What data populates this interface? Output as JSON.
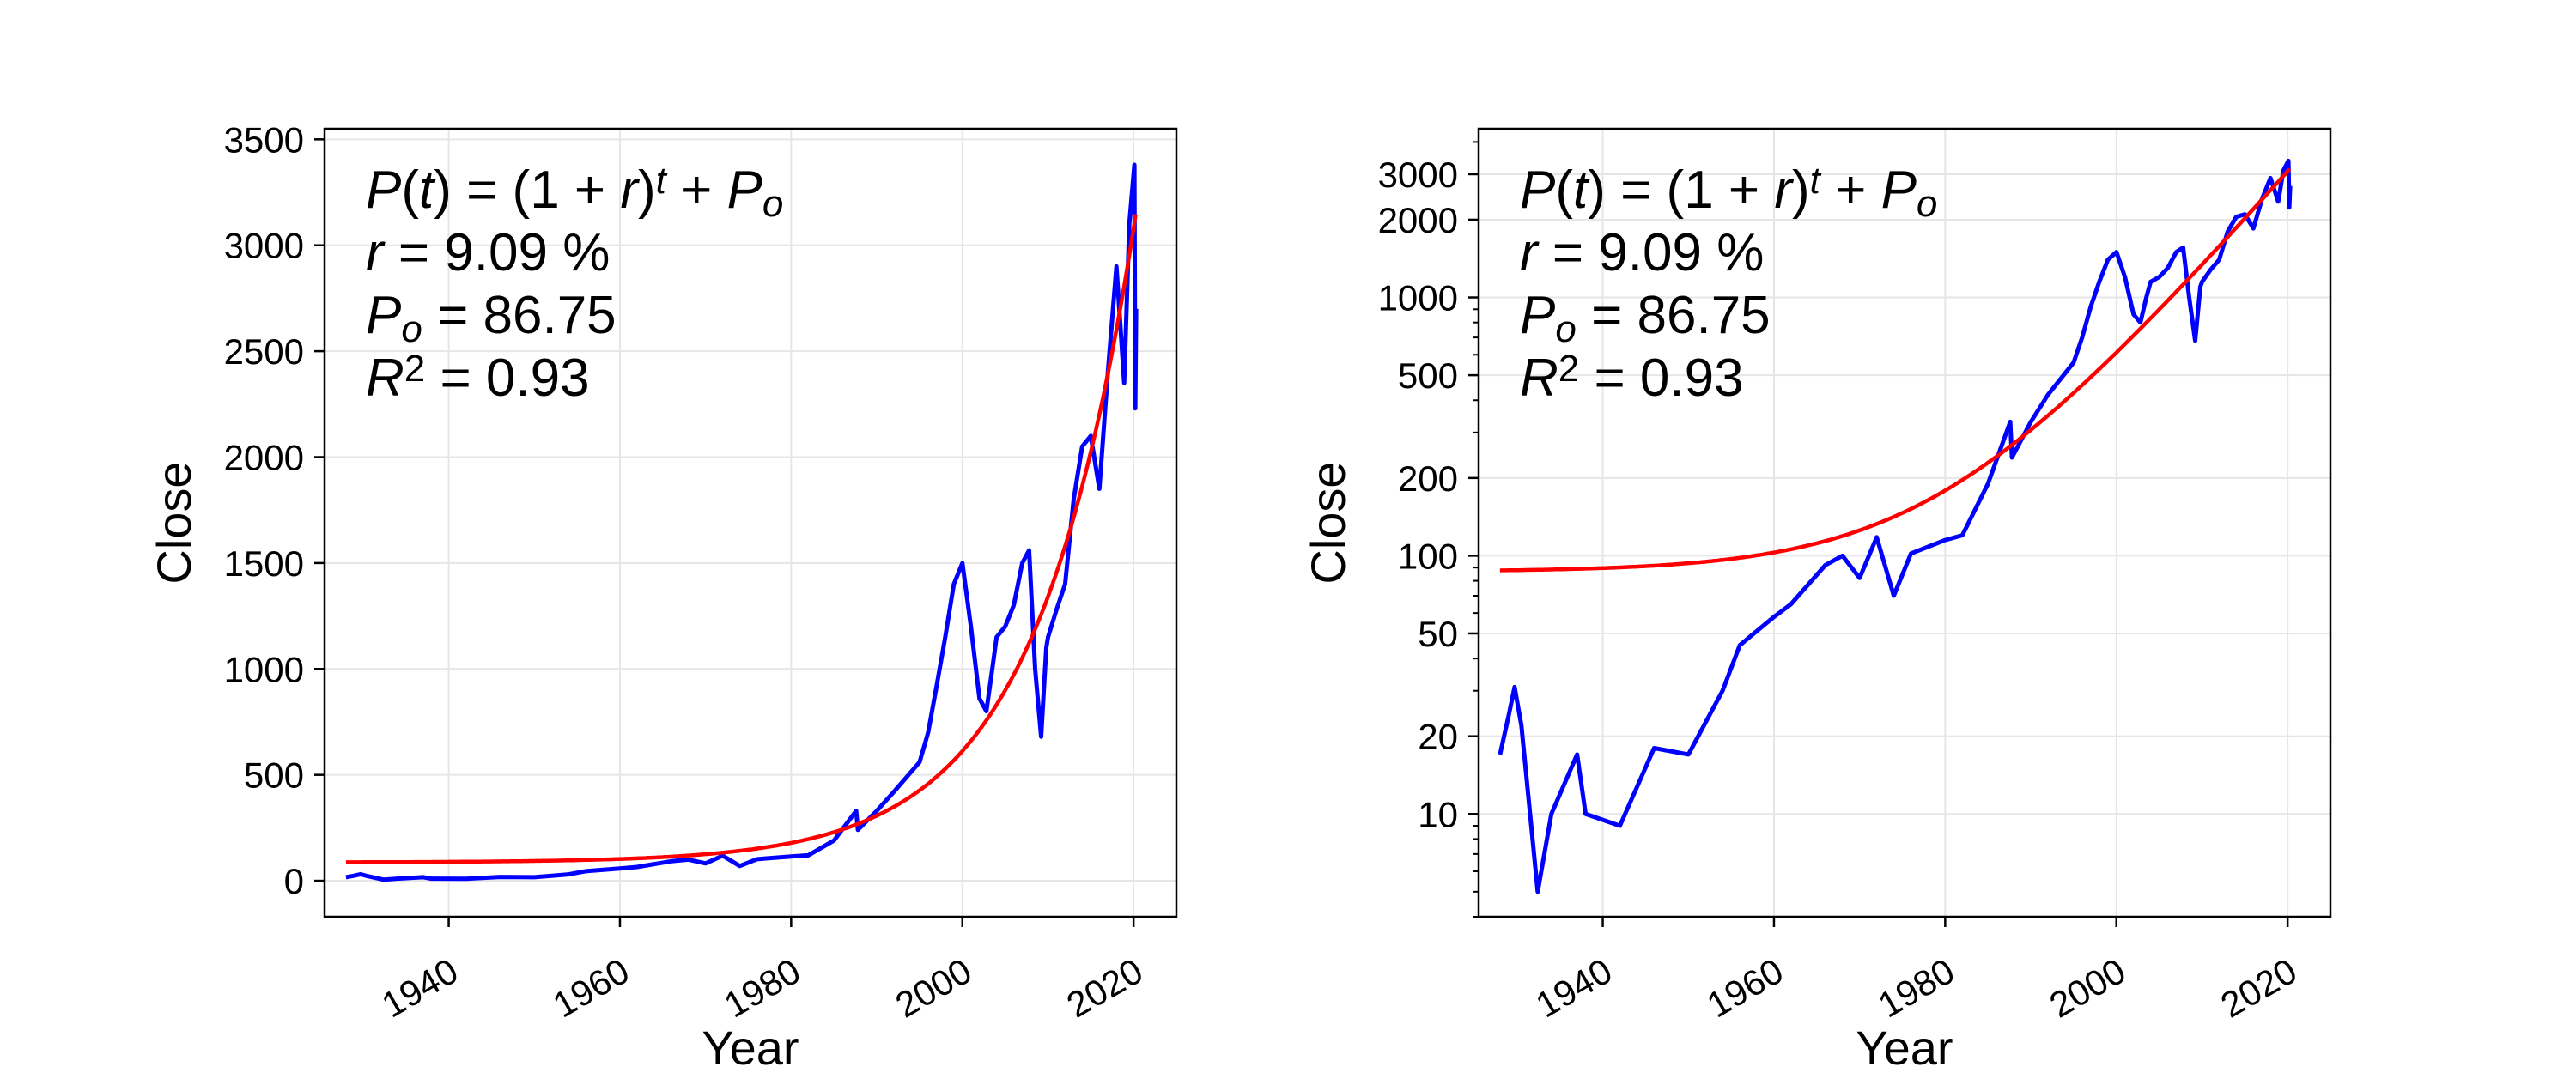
{
  "colors": {
    "price": "#0000ff",
    "fit": "#ff0000",
    "grid": "#e6e6e6",
    "axes": "#000000"
  },
  "chart_data": [
    {
      "type": "line",
      "scale": "linear",
      "xlabel": "Year",
      "ylabel": "Close",
      "xlim": [
        1925.5,
        2025
      ],
      "ylim": [
        -170,
        3550
      ],
      "xticks": [
        1940,
        1960,
        1980,
        2000,
        2020
      ],
      "yticks": [
        0,
        500,
        1000,
        1500,
        2000,
        2500,
        3000,
        3500
      ],
      "xtick_labels": [
        "1940",
        "1960",
        "1980",
        "2000",
        "2020"
      ],
      "ytick_labels": [
        "0",
        "500",
        "1000",
        "1500",
        "2000",
        "2500",
        "3000",
        "3500"
      ],
      "grid": true,
      "annotation": {
        "formula": "P(t) = (1 + r)^t + P_o",
        "r_line": "r = 9.09 %",
        "p_line": "P_o = 86.75",
        "r2_line": "R^2 =  0.93"
      },
      "series": [
        {
          "color": "price",
          "x": [
            1928,
            1929,
            1929.7,
            1930.5,
            1932.4,
            1934,
            1937,
            1938,
            1942,
            1946,
            1950,
            1954,
            1956,
            1960,
            1962,
            1966,
            1968,
            1970,
            1972,
            1974,
            1976,
            1980,
            1982,
            1985,
            1987.6,
            1987.8,
            1990,
            1992,
            1995,
            1996,
            1997,
            1998,
            1999,
            2000,
            2001,
            2002,
            2002.8,
            2003.5,
            2004,
            2005,
            2006,
            2007,
            2007.8,
            2008.5,
            2009.2,
            2009.8,
            2010,
            2011,
            2012,
            2013,
            2014,
            2015,
            2016,
            2017,
            2018,
            2018.9,
            2019.5,
            2020.1,
            2020.2,
            2020.3
          ],
          "y": [
            17,
            24,
            31,
            22,
            5,
            10,
            17,
            10,
            9,
            18,
            17,
            30,
            45,
            58,
            65,
            92,
            100,
            82,
            118,
            70,
            102,
            115,
            120,
            190,
            330,
            240,
            330,
            420,
            560,
            700,
            920,
            1150,
            1400,
            1500,
            1200,
            860,
            800,
            1000,
            1150,
            1200,
            1300,
            1500,
            1560,
            1000,
            680,
            1100,
            1150,
            1280,
            1400,
            1800,
            2050,
            2100,
            1850,
            2400,
            2900,
            2350,
            3100,
            3380,
            2230,
            2700
          ]
        },
        {
          "color": "fit",
          "fit": {
            "r": 0.0909,
            "p0": 86.75,
            "t0": 1928,
            "t_end": 2020.3
          }
        }
      ]
    },
    {
      "type": "line",
      "scale": "log",
      "xlabel": "Year",
      "ylabel": "Close",
      "xlim": [
        1925.5,
        2025
      ],
      "ylim": [
        4,
        4500
      ],
      "xticks": [
        1940,
        1960,
        1980,
        2000,
        2020
      ],
      "yticks": [
        10,
        20,
        50,
        100,
        200,
        500,
        1000,
        2000,
        3000
      ],
      "xtick_labels": [
        "1940",
        "1960",
        "1980",
        "2000",
        "2020"
      ],
      "ytick_labels": [
        "10",
        "20",
        "50",
        "100",
        "200",
        "500",
        "1000",
        "2000",
        "3000"
      ],
      "grid": true,
      "annotation": {
        "formula": "P(t) = (1 + r)^t + P_o",
        "r_line": "r = 9.09 %",
        "p_line": "P_o = 86.75",
        "r2_line": "R^2 =  0.93"
      },
      "series": [
        {
          "color": "price",
          "x": [
            1928,
            1929,
            1929.7,
            1930.5,
            1932.4,
            1934,
            1937,
            1938,
            1942,
            1946,
            1950,
            1954,
            1956,
            1960,
            1962,
            1966,
            1968,
            1970,
            1972,
            1974,
            1976,
            1980,
            1982,
            1985,
            1987.6,
            1987.8,
            1990,
            1992,
            1995,
            1996,
            1997,
            1998,
            1999,
            2000,
            2001,
            2002,
            2002.8,
            2003.5,
            2004,
            2005,
            2006,
            2007,
            2007.8,
            2008.5,
            2009.2,
            2009.8,
            2010,
            2011,
            2012,
            2013,
            2014,
            2015,
            2016,
            2017,
            2018,
            2018.9,
            2019.5,
            2020.1,
            2020.2,
            2020.3
          ],
          "y": [
            17,
            24,
            31,
            22,
            5,
            10,
            17,
            10,
            9,
            18,
            17,
            30,
            45,
            58,
            65,
            92,
            100,
            82,
            118,
            70,
            102,
            115,
            120,
            190,
            330,
            240,
            330,
            420,
            560,
            700,
            920,
            1150,
            1400,
            1500,
            1200,
            860,
            800,
            1000,
            1150,
            1200,
            1300,
            1500,
            1560,
            1000,
            680,
            1100,
            1150,
            1280,
            1400,
            1800,
            2050,
            2100,
            1850,
            2400,
            2900,
            2350,
            3100,
            3380,
            2230,
            2700
          ]
        },
        {
          "color": "fit",
          "fit": {
            "r": 0.0909,
            "p0": 86.75,
            "t0": 1928,
            "t_end": 2020.3
          }
        }
      ]
    }
  ]
}
